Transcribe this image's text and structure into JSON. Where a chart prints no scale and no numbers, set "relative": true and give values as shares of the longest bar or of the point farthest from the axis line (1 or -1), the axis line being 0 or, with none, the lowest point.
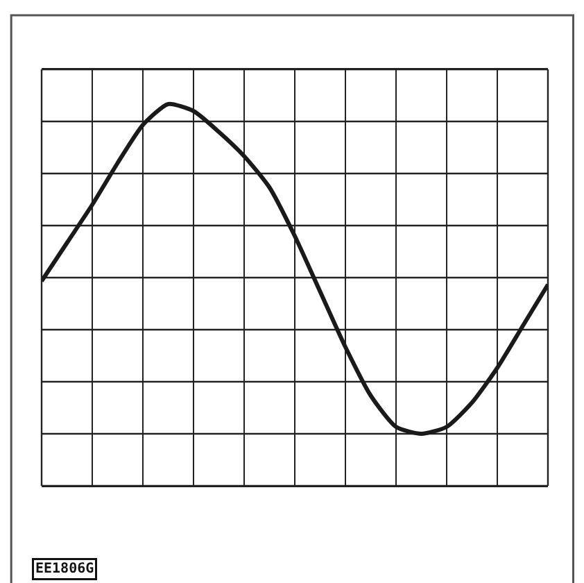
{
  "chart_data": {
    "type": "line",
    "relative": true,
    "grid": true,
    "categories": [
      null,
      null,
      null,
      null,
      null,
      null,
      null,
      null,
      null,
      null,
      null,
      null,
      null,
      null,
      null,
      null,
      null,
      null,
      null,
      null,
      null
    ],
    "series": [
      {
        "color": "#1a1a1a",
        "values": [
          -0.02,
          0.2,
          0.42,
          0.66,
          0.88,
          1,
          0.96,
          0.84,
          0.7,
          0.52,
          0.24,
          -0.08,
          -0.4,
          -0.68,
          -0.86,
          -0.9,
          -0.86,
          -0.72,
          -0.52,
          -0.28,
          -0.04
        ]
      }
    ],
    "annotations": [
      "EE1806G"
    ]
  }
}
